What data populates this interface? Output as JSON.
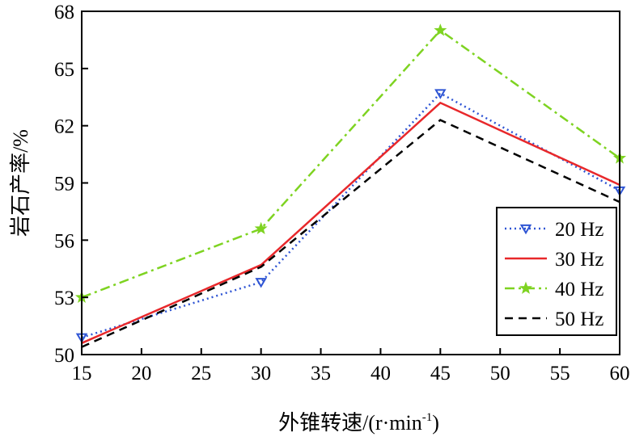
{
  "chart_data": {
    "type": "line",
    "xlabel": "外锥转速/(r·min",
    "xlabel_sup": "-1",
    "xlabel_suffix": ")",
    "ylabel": "岩石产率/%",
    "xlim": [
      15,
      60
    ],
    "ylim": [
      50,
      68
    ],
    "xticks": [
      15,
      20,
      25,
      30,
      35,
      40,
      45,
      50,
      55,
      60
    ],
    "yticks": [
      50,
      53,
      56,
      59,
      62,
      65,
      68
    ],
    "grid": false,
    "legend_position": "lower-right",
    "x": [
      15,
      30,
      45,
      60
    ],
    "series": [
      {
        "name": "20 Hz",
        "values": [
          50.9,
          53.8,
          63.7,
          58.6
        ],
        "color": "#2f55d4",
        "dash": "dotted",
        "marker": "down-triangle-icon"
      },
      {
        "name": "30 Hz",
        "values": [
          50.6,
          54.7,
          63.2,
          58.9
        ],
        "color": "#e8282b",
        "dash": "solid",
        "marker": "none"
      },
      {
        "name": "40 Hz",
        "values": [
          53.0,
          56.6,
          67.0,
          60.3
        ],
        "color": "#7ed321",
        "dash": "dash-dot",
        "marker": "star-icon"
      },
      {
        "name": "50 Hz",
        "values": [
          50.4,
          54.6,
          62.3,
          58.0
        ],
        "color": "#000000",
        "dash": "dashed",
        "marker": "none"
      }
    ]
  }
}
